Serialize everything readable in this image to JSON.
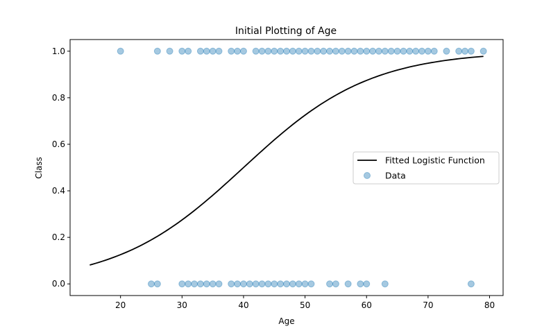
{
  "chart_data": {
    "type": "scatter",
    "title": "Initial Plotting of Age",
    "xlabel": "Age",
    "ylabel": "Class",
    "xlim": [
      11.8,
      82.2
    ],
    "ylim": [
      -0.05,
      1.05
    ],
    "xticks": [
      20,
      30,
      40,
      50,
      60,
      70,
      80
    ],
    "yticks": [
      0.0,
      0.2,
      0.4,
      0.6,
      0.8,
      1.0
    ],
    "xtick_labels": [
      "20",
      "30",
      "40",
      "50",
      "60",
      "70",
      "80"
    ],
    "ytick_labels": [
      "0.0",
      "0.2",
      "0.4",
      "0.6",
      "0.8",
      "1.0"
    ],
    "grid": false,
    "legend_position": "center-right",
    "series": [
      {
        "name": "Fitted Logistic Function",
        "kind": "line",
        "color": "#000000",
        "function": "logistic",
        "intercept": -3.88,
        "slope": 0.097,
        "x_range": [
          15,
          79
        ]
      },
      {
        "name": "Data",
        "kind": "scatter",
        "color": "#1f77b4",
        "alpha": 0.4,
        "points": [
          [
            20,
            1
          ],
          [
            26,
            1
          ],
          [
            28,
            1
          ],
          [
            30,
            1
          ],
          [
            31,
            1
          ],
          [
            33,
            1
          ],
          [
            34,
            1
          ],
          [
            35,
            1
          ],
          [
            36,
            1
          ],
          [
            38,
            1
          ],
          [
            39,
            1
          ],
          [
            40,
            1
          ],
          [
            42,
            1
          ],
          [
            43,
            1
          ],
          [
            44,
            1
          ],
          [
            45,
            1
          ],
          [
            46,
            1
          ],
          [
            47,
            1
          ],
          [
            48,
            1
          ],
          [
            49,
            1
          ],
          [
            50,
            1
          ],
          [
            51,
            1
          ],
          [
            52,
            1
          ],
          [
            53,
            1
          ],
          [
            54,
            1
          ],
          [
            55,
            1
          ],
          [
            56,
            1
          ],
          [
            57,
            1
          ],
          [
            58,
            1
          ],
          [
            59,
            1
          ],
          [
            60,
            1
          ],
          [
            61,
            1
          ],
          [
            62,
            1
          ],
          [
            63,
            1
          ],
          [
            64,
            1
          ],
          [
            65,
            1
          ],
          [
            66,
            1
          ],
          [
            67,
            1
          ],
          [
            68,
            1
          ],
          [
            69,
            1
          ],
          [
            70,
            1
          ],
          [
            71,
            1
          ],
          [
            73,
            1
          ],
          [
            75,
            1
          ],
          [
            76,
            1
          ],
          [
            77,
            1
          ],
          [
            79,
            1
          ],
          [
            25,
            0
          ],
          [
            26,
            0
          ],
          [
            30,
            0
          ],
          [
            31,
            0
          ],
          [
            32,
            0
          ],
          [
            33,
            0
          ],
          [
            34,
            0
          ],
          [
            35,
            0
          ],
          [
            36,
            0
          ],
          [
            38,
            0
          ],
          [
            39,
            0
          ],
          [
            40,
            0
          ],
          [
            41,
            0
          ],
          [
            42,
            0
          ],
          [
            43,
            0
          ],
          [
            44,
            0
          ],
          [
            45,
            0
          ],
          [
            46,
            0
          ],
          [
            47,
            0
          ],
          [
            48,
            0
          ],
          [
            49,
            0
          ],
          [
            50,
            0
          ],
          [
            51,
            0
          ],
          [
            54,
            0
          ],
          [
            55,
            0
          ],
          [
            57,
            0
          ],
          [
            59,
            0
          ],
          [
            60,
            0
          ],
          [
            63,
            0
          ],
          [
            77,
            0
          ]
        ]
      }
    ]
  }
}
